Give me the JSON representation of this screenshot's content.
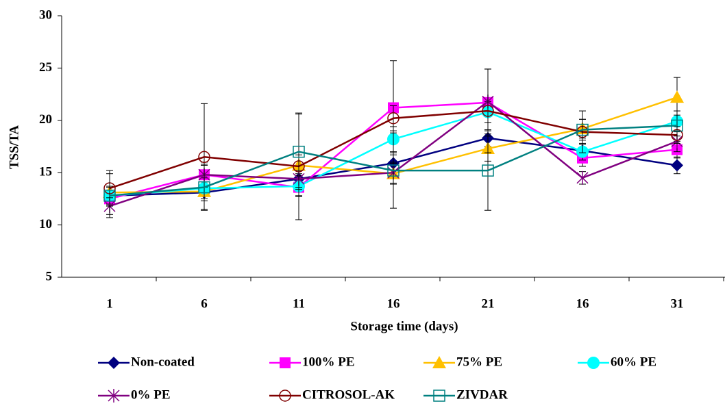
{
  "chart_data": {
    "type": "line",
    "x_label": "Storage time (days)",
    "y_label": "TSS/TA",
    "categories": [
      "1",
      "6",
      "11",
      "16",
      "21",
      "16",
      "31"
    ],
    "ylim": [
      5,
      30
    ],
    "yticks": [
      5,
      10,
      15,
      20,
      25,
      30
    ],
    "series": [
      {
        "name": "Non-coated",
        "color": "#000080",
        "marker": "diamond",
        "values": [
          12.8,
          13.1,
          14.4,
          15.9,
          18.3,
          17.1,
          15.7
        ],
        "errors": [
          0.5,
          0.8,
          0.5,
          1.0,
          0.8,
          0.6,
          0.8
        ]
      },
      {
        "name": "100% PE",
        "color": "#ff00ff",
        "marker": "square",
        "values": [
          12.5,
          14.8,
          13.6,
          21.2,
          21.7,
          16.4,
          17.2
        ],
        "errors": [
          0.6,
          1.0,
          0.8,
          4.5,
          3.2,
          0.8,
          0.8
        ]
      },
      {
        "name": "75% PE",
        "color": "#ffc000",
        "marker": "triangle",
        "values": [
          13.1,
          13.2,
          15.7,
          14.9,
          17.3,
          19.2,
          22.2
        ],
        "errors": [
          0.6,
          0.9,
          1.0,
          1.0,
          1.2,
          0.9,
          1.9
        ]
      },
      {
        "name": "60% PE",
        "color": "#00ffff",
        "marker": "circle",
        "values": [
          12.8,
          13.5,
          13.7,
          18.2,
          20.8,
          17.0,
          19.9
        ],
        "errors": [
          0.8,
          1.0,
          1.0,
          1.2,
          1.0,
          0.8,
          1.0
        ]
      },
      {
        "name": "0% PE",
        "color": "#800080",
        "marker": "star",
        "values": [
          11.8,
          14.8,
          14.4,
          15.0,
          21.8,
          14.5,
          18.0
        ],
        "errors": [
          0.8,
          1.2,
          0.8,
          1.0,
          3.1,
          0.6,
          1.0
        ]
      },
      {
        "name": "CITROSOL-AK",
        "color": "#800000",
        "marker": "open-circle",
        "values": [
          13.5,
          16.5,
          15.6,
          20.2,
          20.9,
          18.9,
          18.6
        ],
        "errors": [
          1.7,
          5.1,
          5.1,
          1.2,
          4.0,
          2.0,
          0.8
        ]
      },
      {
        "name": "ZIVDAR",
        "color": "#008080",
        "marker": "open-square",
        "values": [
          12.8,
          13.6,
          17.0,
          15.2,
          15.2,
          19.1,
          19.5
        ],
        "errors": [
          2.1,
          2.1,
          3.6,
          3.6,
          3.8,
          1.0,
          1.0
        ]
      }
    ]
  }
}
